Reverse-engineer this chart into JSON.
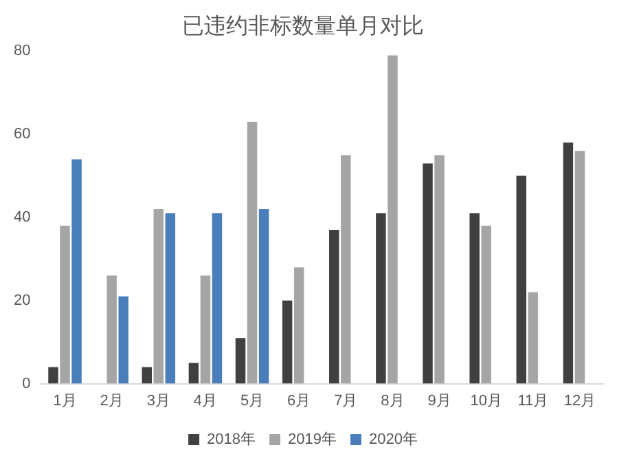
{
  "chart_data": {
    "type": "bar",
    "title": "已违约非标数量单月对比",
    "categories": [
      "1月",
      "2月",
      "3月",
      "4月",
      "5月",
      "6月",
      "7月",
      "8月",
      "9月",
      "10月",
      "11月",
      "12月"
    ],
    "series": [
      {
        "name": "2018年",
        "color": "#404040",
        "values": [
          4,
          null,
          4,
          5,
          11,
          20,
          37,
          41,
          53,
          41,
          50,
          58
        ]
      },
      {
        "name": "2019年",
        "color": "#a5a5a5",
        "values": [
          38,
          26,
          42,
          26,
          63,
          28,
          55,
          79,
          55,
          38,
          22,
          56
        ]
      },
      {
        "name": "2020年",
        "color": "#4a7ebb",
        "values": [
          54,
          21,
          41,
          41,
          42,
          null,
          null,
          null,
          null,
          null,
          null,
          null
        ]
      }
    ],
    "ylim": [
      0,
      80
    ],
    "yticks": [
      0,
      20,
      40,
      60,
      80
    ],
    "grid": false,
    "legend": "bottom"
  }
}
